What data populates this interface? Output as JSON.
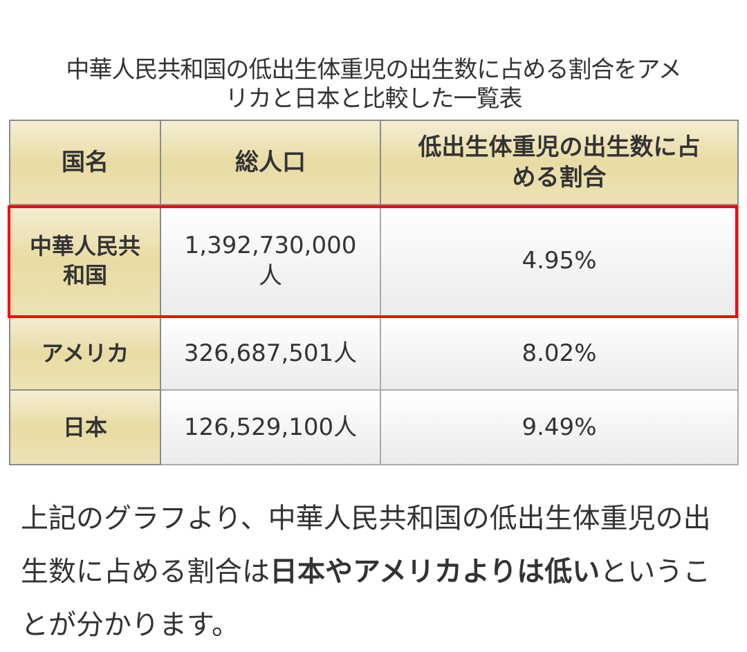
{
  "caption": {
    "line1": "中華人民共和国の低出生体重児の出生数に占める割合をアメ",
    "line2": "リカと日本と比較した一覧表"
  },
  "table": {
    "headers": {
      "country": "国名",
      "population": "総人口",
      "ratio_line1": "低出生体重児の出生数に占",
      "ratio_line2": "める割合"
    },
    "rows": [
      {
        "country_line1": "中華人民共",
        "country_line2": "和国",
        "population_line1": "1,392,730,000",
        "population_line2": "人",
        "ratio": "4.95%",
        "highlighted": true
      },
      {
        "country": "アメリカ",
        "population": "326,687,501人",
        "ratio": "8.02%",
        "highlighted": false
      },
      {
        "country": "日本",
        "population": "126,529,100人",
        "ratio": "9.49%",
        "highlighted": false
      }
    ],
    "highlight_color": "#ff0000",
    "header_bg_color": "#e8dca4"
  },
  "summary": {
    "part1": "上記のグラフより、中華人民共和国の低出生体重児の出生数に占める割合は",
    "bold": "日本やアメリカよりは低い",
    "part2": "ということが分かります。"
  }
}
